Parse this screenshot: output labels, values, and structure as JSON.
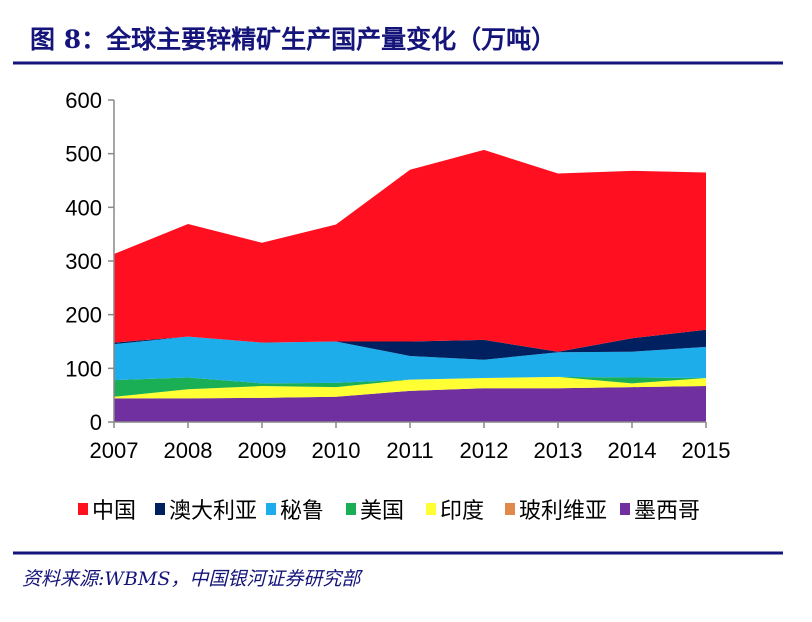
{
  "title": "图 8：全球主要锌精矿生产国产量变化（万吨）",
  "source": "资料来源:WBMS，中国银河证券研究部",
  "accent_color": "#14147a",
  "chart_data": {
    "type": "area",
    "stacked": true,
    "title": "",
    "xlabel": "",
    "ylabel": "",
    "categories": [
      "2007",
      "2008",
      "2009",
      "2010",
      "2011",
      "2012",
      "2013",
      "2014",
      "2015"
    ],
    "ylim": [
      0,
      600
    ],
    "yticks": [
      "0",
      "100",
      "200",
      "300",
      "400",
      "500",
      "600"
    ],
    "grid": false,
    "legend_position": "bottom",
    "series": [
      {
        "name": "墨西哥",
        "color": "#7030A0",
        "values": [
          44,
          44,
          45,
          47,
          58,
          63,
          63,
          65,
          67
        ]
      },
      {
        "name": "玻利维亚",
        "color": "#E0894A",
        "values": [
          0,
          0,
          0,
          0,
          0,
          0,
          0,
          0,
          0
        ]
      },
      {
        "name": "印度",
        "color": "#FFFF33",
        "values": [
          3,
          17,
          22,
          18,
          21,
          19,
          21,
          7,
          15
        ]
      },
      {
        "name": "美国",
        "color": "#1AAF54",
        "values": [
          31,
          22,
          5,
          8,
          0,
          0,
          0,
          11,
          0
        ]
      },
      {
        "name": "秘鲁",
        "color": "#1EADEB",
        "values": [
          67,
          76,
          76,
          77,
          44,
          34,
          46,
          48,
          58
        ]
      },
      {
        "name": "澳大利亚",
        "color": "#002060",
        "values": [
          3,
          0,
          0,
          0,
          27,
          37,
          1,
          25,
          32
        ]
      },
      {
        "name": "中国",
        "color": "#FF0F1F",
        "values": [
          165,
          210,
          186,
          218,
          320,
          354,
          332,
          312,
          293
        ]
      }
    ],
    "legend_order": [
      "中国",
      "澳大利亚",
      "秘鲁",
      "美国",
      "印度",
      "玻利维亚",
      "墨西哥"
    ]
  }
}
